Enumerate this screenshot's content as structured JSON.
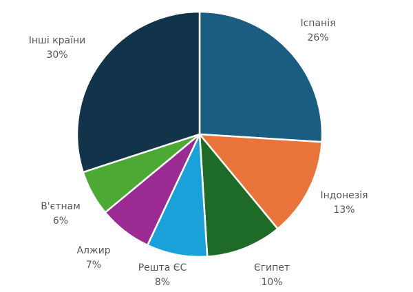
{
  "chart_data": {
    "type": "pie",
    "title": "",
    "unit": "%",
    "start_angle_deg": 0,
    "direction": "clockwise",
    "slices": [
      {
        "label": "Іспанія",
        "value": 26,
        "display": "26%",
        "color": "#1b5d80"
      },
      {
        "label": "Індонезія",
        "value": 13,
        "display": "13%",
        "color": "#e8743a"
      },
      {
        "label": "Єгипет",
        "value": 10,
        "display": "10%",
        "color": "#1e6b27"
      },
      {
        "label": "Решта ЄС",
        "value": 8,
        "display": "8%",
        "color": "#1ba1da"
      },
      {
        "label": "Алжир",
        "value": 7,
        "display": "7%",
        "color": "#9b2a92"
      },
      {
        "label": "В'єтнам",
        "value": 6,
        "display": "6%",
        "color": "#4ca934"
      },
      {
        "label": "Інші країни",
        "value": 30,
        "display": "30%",
        "color": "#12344b"
      }
    ]
  }
}
